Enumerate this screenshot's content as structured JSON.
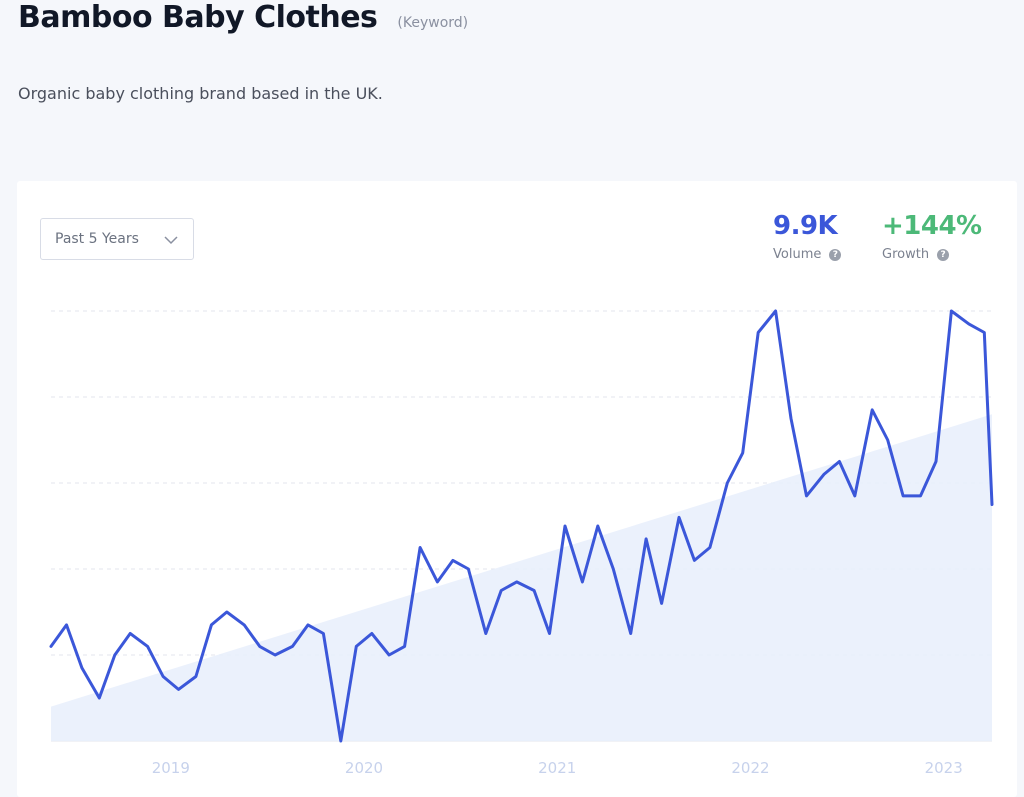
{
  "page": {
    "title": "Bamboo Baby Clothes",
    "type_tag": "(Keyword)",
    "description": "Organic baby clothing brand based in the UK."
  },
  "controls": {
    "range_label": "Past 5 Years"
  },
  "metrics": {
    "volume": {
      "value": "9.9K",
      "label": "Volume",
      "color": "#3b57d9",
      "help_icon": "question-circle-icon"
    },
    "growth": {
      "value": "+144%",
      "label": "Growth",
      "color": "#4cb978",
      "help_icon": "question-circle-icon"
    }
  },
  "colors": {
    "line": "#3b57d9",
    "trend_fill": "#e8eefb",
    "grid": "#e3e6ee",
    "ticks": "#c7d2ec"
  },
  "chart_data": {
    "type": "line",
    "title": "",
    "xlabel": "",
    "ylabel": "",
    "ylim": [
      0,
      100
    ],
    "y_axis_labels_visible": false,
    "grid": "horizontal-dashed",
    "x_tick_labels": [
      "2019",
      "2020",
      "2021",
      "2022",
      "2023"
    ],
    "x_ticks": [
      2019.0,
      2020.0,
      2021.0,
      2022.0,
      2023.0
    ],
    "xlim": [
      2018.38,
      2023.25
    ],
    "series": [
      {
        "x": [
          2018.38,
          2018.46,
          2018.54,
          2018.63,
          2018.71,
          2018.79,
          2018.88,
          2018.96,
          2019.04,
          2019.13,
          2019.21,
          2019.29,
          2019.38,
          2019.46,
          2019.54,
          2019.63,
          2019.71,
          2019.79,
          2019.88,
          2019.96,
          2020.04,
          2020.13,
          2020.21,
          2020.29,
          2020.38,
          2020.46,
          2020.54,
          2020.63,
          2020.71,
          2020.79,
          2020.88,
          2020.96,
          2021.04,
          2021.13,
          2021.21,
          2021.29,
          2021.38,
          2021.46,
          2021.54,
          2021.63,
          2021.71,
          2021.79,
          2021.88,
          2021.96,
          2022.04,
          2022.13,
          2022.21,
          2022.29,
          2022.38,
          2022.46,
          2022.54,
          2022.63,
          2022.71,
          2022.79,
          2022.88,
          2022.96,
          2023.04,
          2023.13,
          2023.21,
          2023.25
        ],
        "y": [
          22,
          27,
          17,
          10,
          20,
          25,
          22,
          15,
          12,
          15,
          27,
          30,
          27,
          22,
          20,
          22,
          27,
          25,
          0,
          22,
          25,
          20,
          22,
          45,
          37,
          42,
          40,
          25,
          35,
          37,
          35,
          25,
          50,
          37,
          50,
          40,
          25,
          47,
          32,
          52,
          42,
          45,
          60,
          67,
          95,
          100,
          75,
          57,
          62,
          65,
          57,
          77,
          70,
          57,
          57,
          65,
          100,
          97,
          95,
          55
        ]
      }
    ],
    "trend": {
      "type": "linear-area",
      "y_start": 8,
      "y_end": 76
    }
  }
}
